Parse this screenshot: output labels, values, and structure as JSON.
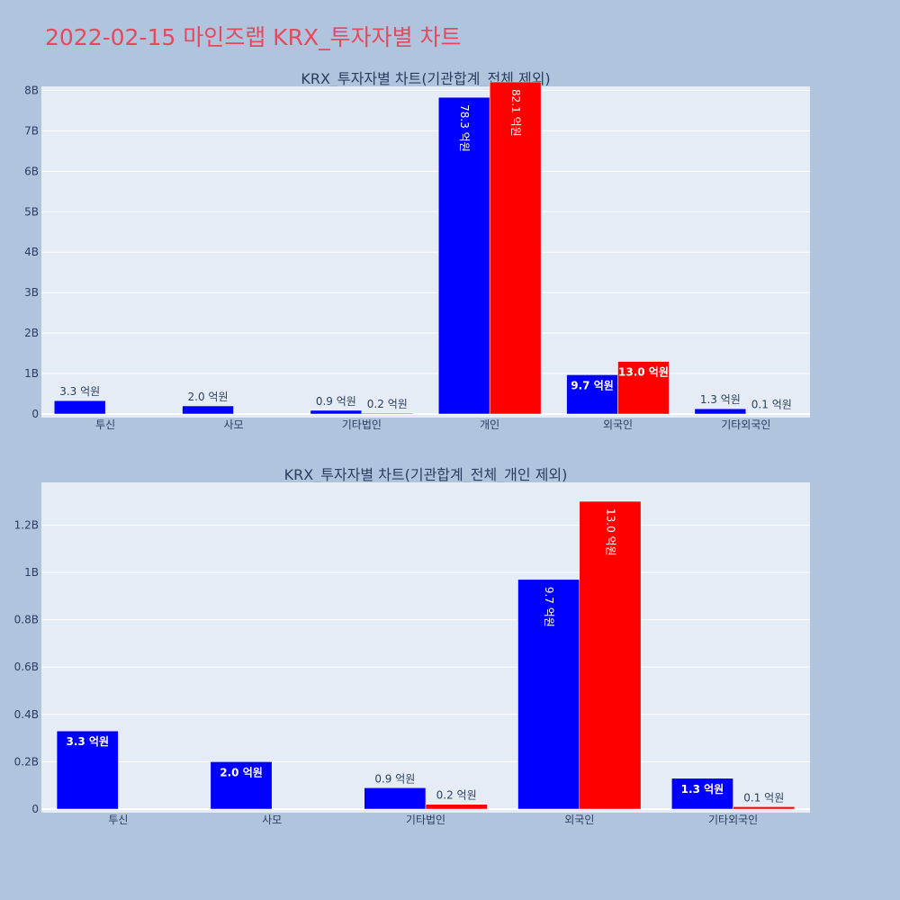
{
  "page": {
    "title": "2022-02-15 마인즈랩 KRX_투자자별 차트"
  },
  "colors": {
    "background": "#b0c4de",
    "plot_bg": "#e5ecf6",
    "series_1": "#0000ff",
    "series_2": "#ff0000",
    "title": "#e8485d"
  },
  "chart_data": [
    {
      "type": "bar",
      "title": "KRX_투자자별 차트(기관합계_전체 제외)",
      "xlabel": "",
      "ylabel": "",
      "categories": [
        "투신",
        "사모",
        "기타법인",
        "개인",
        "외국인",
        "기타외국인"
      ],
      "ylim": [
        0,
        8.1
      ],
      "yticks": [
        0,
        1,
        2,
        3,
        4,
        5,
        6,
        7,
        8
      ],
      "ytick_labels": [
        "0",
        "1B",
        "2B",
        "3B",
        "4B",
        "5B",
        "6B",
        "7B",
        "8B"
      ],
      "grid": true,
      "series": [
        {
          "color": "#0000ff",
          "values": [
            0.33,
            0.2,
            0.09,
            7.83,
            0.97,
            0.13
          ],
          "labels": [
            "3.3 억원",
            "2.0 억원",
            "0.9 억원",
            "78.3 억원",
            "9.7 억원",
            "1.3 억원"
          ]
        },
        {
          "color": "#ff0000",
          "values": [
            0,
            0,
            0.02,
            8.21,
            1.3,
            0.01
          ],
          "labels": [
            "",
            "",
            "0.2 억원",
            "82.1 억원",
            "13.0 억원",
            "0.1 억원"
          ]
        }
      ]
    },
    {
      "type": "bar",
      "title": "KRX_투자자별 차트(기관합계_전체_개인 제외)",
      "xlabel": "",
      "ylabel": "",
      "categories": [
        "투신",
        "사모",
        "기타법인",
        "외국인",
        "기타외국인"
      ],
      "ylim": [
        0,
        1.38
      ],
      "yticks": [
        0,
        0.2,
        0.4,
        0.6,
        0.8,
        1.0,
        1.2
      ],
      "ytick_labels": [
        "0",
        "0.2B",
        "0.4B",
        "0.6B",
        "0.8B",
        "1B",
        "1.2B"
      ],
      "grid": true,
      "series": [
        {
          "color": "#0000ff",
          "values": [
            0.33,
            0.2,
            0.09,
            0.97,
            0.13
          ],
          "labels": [
            "3.3 억원",
            "2.0 억원",
            "0.9 억원",
            "9.7 억원",
            "1.3 억원"
          ]
        },
        {
          "color": "#ff0000",
          "values": [
            0,
            0,
            0.02,
            1.3,
            0.01
          ],
          "labels": [
            "",
            "",
            "0.2 억원",
            "13.0 억원",
            "0.1 억원"
          ]
        }
      ]
    }
  ]
}
